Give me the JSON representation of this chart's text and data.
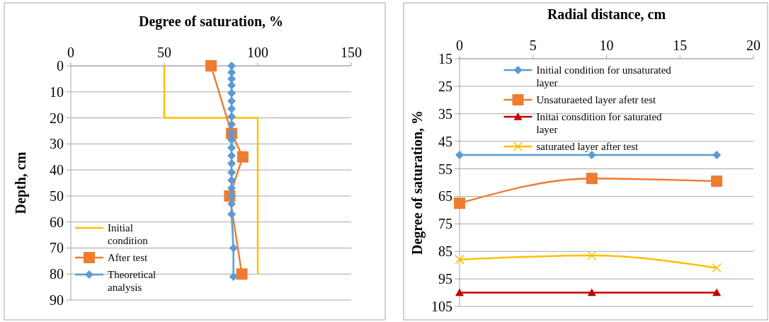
{
  "chart_data": [
    {
      "type": "line",
      "xlabel": "Degree of saturation, %",
      "ylabel": "Depth, cm",
      "xlim": [
        0,
        150
      ],
      "xticks": [
        0,
        50,
        100,
        150
      ],
      "ylim": [
        90,
        0
      ],
      "yticks": [
        0,
        10,
        20,
        30,
        40,
        50,
        60,
        70,
        80,
        90
      ],
      "grid": "y",
      "legend": "bottom left",
      "series": [
        {
          "name": "Initial condition",
          "color": "#ffc000",
          "marker": "none",
          "x": [
            50,
            50,
            100,
            100
          ],
          "values": [
            0,
            20,
            20,
            80
          ]
        },
        {
          "name": "After test",
          "color": "#ed7d31",
          "marker": "square",
          "x": [
            75,
            86,
            92,
            85,
            91.5
          ],
          "values": [
            0,
            26,
            35,
            50,
            80
          ]
        },
        {
          "name": "Theoretical analysis",
          "color": "#5b9bd5",
          "marker": "diamond",
          "x": [
            86,
            86,
            86,
            86,
            86,
            86,
            86,
            86,
            86,
            86,
            86,
            86,
            86,
            86,
            86,
            86,
            86,
            86,
            86,
            86,
            87,
            87
          ],
          "values": [
            0,
            2.5,
            5,
            7.5,
            10.5,
            13.5,
            16.5,
            19.5,
            22.5,
            26,
            28.5,
            31.5,
            34.5,
            37.5,
            41,
            44,
            47,
            50,
            53,
            57,
            70,
            81
          ]
        }
      ]
    },
    {
      "type": "line",
      "xlabel": "Radial distance, cm",
      "ylabel": "Degree of saturation, %",
      "xlim": [
        0,
        20
      ],
      "xticks": [
        0,
        5,
        10,
        15,
        20
      ],
      "ylim": [
        105,
        15
      ],
      "yticks": [
        15,
        25,
        35,
        45,
        55,
        65,
        75,
        85,
        95,
        105
      ],
      "grid": "y",
      "legend": "top",
      "series": [
        {
          "name": "Initial condition for unsaturated layer",
          "color": "#5b9bd5",
          "marker": "diamond",
          "x": [
            0,
            9,
            17.5
          ],
          "values": [
            50,
            50,
            50
          ]
        },
        {
          "name": "Unsaturaeted layer afetr test",
          "color": "#ed7d31",
          "marker": "square",
          "x": [
            0,
            9,
            17.5
          ],
          "values": [
            67.5,
            58.5,
            59.5
          ]
        },
        {
          "name": "Initai consdition for saturated layer",
          "color": "#c00000",
          "marker": "triangle",
          "x": [
            0,
            9,
            17.5
          ],
          "values": [
            100,
            100,
            100
          ]
        },
        {
          "name": "saturated layer after test",
          "color": "#ffc000",
          "marker": "cross",
          "x": [
            0,
            9,
            17.5
          ],
          "values": [
            88,
            86.5,
            91
          ]
        }
      ]
    }
  ]
}
